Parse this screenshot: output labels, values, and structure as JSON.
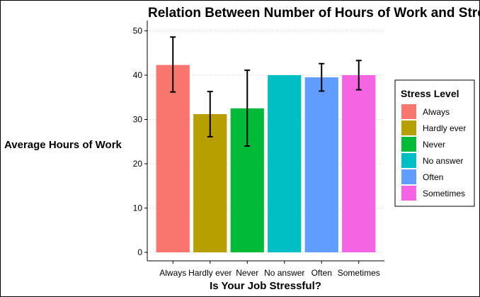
{
  "chart_data": {
    "type": "bar",
    "title": "Relation Between Number of Hours of Work and Stress",
    "xlabel": "Is Your Job Stressful?",
    "ylabel": "Average Hours of Work",
    "ylim": [
      0,
      51
    ],
    "yticks": [
      "0",
      "10",
      "20",
      "30",
      "40",
      "50"
    ],
    "categories": [
      "Always",
      "Hardly ever",
      "Never",
      "No answer",
      "Often",
      "Sometimes"
    ],
    "values": [
      42.3,
      31.2,
      32.5,
      40.0,
      39.5,
      40.0
    ],
    "error_low": [
      36.2,
      26.1,
      24.0,
      null,
      36.4,
      36.7
    ],
    "error_high": [
      48.6,
      36.3,
      41.1,
      null,
      42.6,
      43.3
    ],
    "colors": [
      "#F8766D",
      "#B79F00",
      "#00BA38",
      "#00BFC4",
      "#619CFF",
      "#F564E3"
    ],
    "grid": "horizontal-dotted",
    "legend": {
      "title": "Stress Level",
      "position": "right",
      "entries": [
        "Always",
        "Hardly ever",
        "Never",
        "No answer",
        "Often",
        "Sometimes"
      ]
    }
  }
}
